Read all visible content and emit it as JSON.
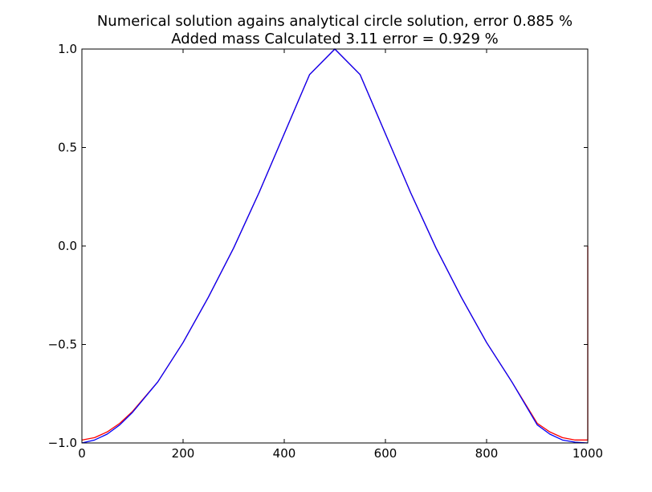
{
  "chart_data": {
    "type": "line",
    "title": "Numerical solution agains analytical circle solution, error 0.885 %",
    "subtitle": "Added mass Calculated 3.11  error = 0.929 %",
    "xlabel": "",
    "ylabel": "",
    "xlim": [
      0,
      1000
    ],
    "ylim": [
      -1.0,
      1.0
    ],
    "grid": false,
    "legend": "none",
    "x_ticks": [
      0,
      200,
      400,
      600,
      800,
      1000
    ],
    "x_tick_labels": [
      "0",
      "200",
      "400",
      "600",
      "800",
      "1000"
    ],
    "y_ticks": [
      -1.0,
      -0.5,
      0.0,
      0.5,
      1.0
    ],
    "y_tick_labels": [
      "−1.0",
      "−0.5",
      "0.0",
      "0.5",
      "1.0"
    ],
    "series": [
      {
        "color": "#ff0000",
        "x": [
          0,
          25,
          50,
          75,
          100,
          150,
          200,
          250,
          300,
          350,
          400,
          450,
          500,
          550,
          600,
          650,
          700,
          750,
          800,
          850,
          900,
          925,
          950,
          975,
          998,
          1000,
          1000
        ],
        "y": [
          -0.985,
          -0.973,
          -0.944,
          -0.9,
          -0.84,
          -0.69,
          -0.49,
          -0.26,
          -0.01,
          0.27,
          0.57,
          0.87,
          1.0,
          0.87,
          0.57,
          0.27,
          -0.01,
          -0.26,
          -0.49,
          -0.69,
          -0.9,
          -0.944,
          -0.973,
          -0.985,
          -0.985,
          -0.985,
          0.0
        ]
      },
      {
        "color": "#0000ff",
        "x": [
          0,
          25,
          50,
          75,
          100,
          150,
          200,
          250,
          300,
          350,
          400,
          450,
          500,
          550,
          600,
          650,
          700,
          750,
          800,
          850,
          900,
          925,
          950,
          975,
          1000
        ],
        "y": [
          -1.0,
          -0.985,
          -0.955,
          -0.908,
          -0.845,
          -0.69,
          -0.49,
          -0.26,
          -0.01,
          0.27,
          0.57,
          0.87,
          1.0,
          0.87,
          0.57,
          0.27,
          -0.01,
          -0.26,
          -0.49,
          -0.69,
          -0.908,
          -0.955,
          -0.985,
          -0.996,
          -1.0
        ]
      }
    ]
  }
}
